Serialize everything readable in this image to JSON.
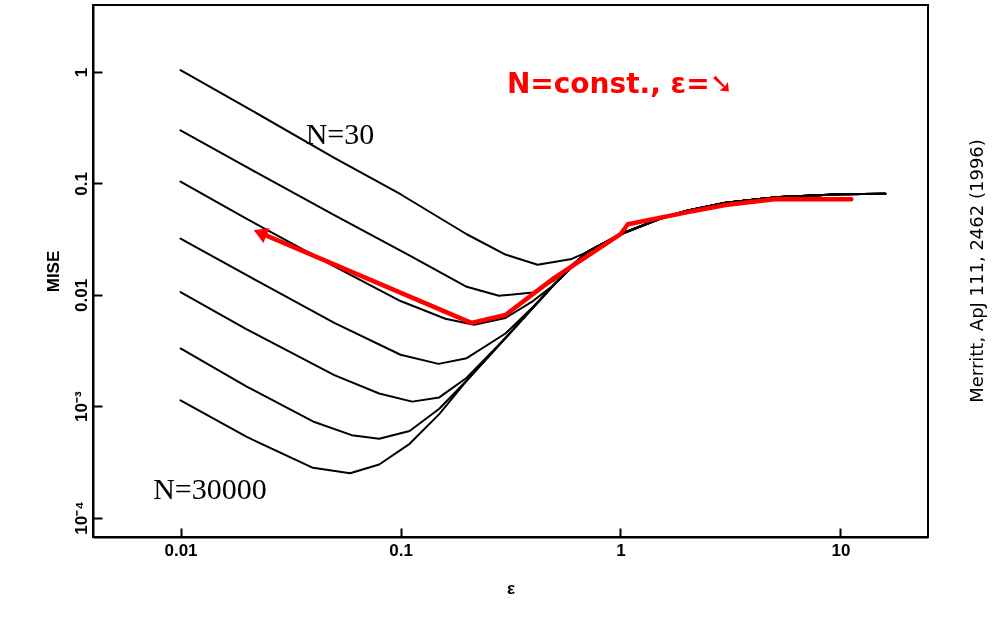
{
  "chart_data": {
    "type": "line",
    "xlabel": "ε",
    "ylabel": "MISE",
    "log": "xy",
    "xlim": [
      0.004,
      25
    ],
    "ylim": [
      6.7e-05,
      4
    ],
    "xticks": [
      0.01,
      0.1,
      1,
      10
    ],
    "yticks": [
      {
        "value": 0.0001,
        "label": "10⁻⁴"
      },
      {
        "value": 0.001,
        "label": "10⁻³"
      },
      0.01,
      0.1,
      1
    ],
    "series": [
      {
        "color": "#000000",
        "x": [
          0.01,
          0.02,
          0.05,
          0.1,
          0.2,
          0.3,
          0.42,
          0.6,
          0.8,
          1,
          1.5,
          2,
          3,
          5,
          10,
          16
        ],
        "values": [
          1.04,
          0.48,
          0.17,
          0.08,
          0.035,
          0.023,
          0.0186,
          0.021,
          0.027,
          0.035,
          0.048,
          0.057,
          0.067,
          0.075,
          0.08,
          0.081
        ]
      },
      {
        "color": "#000000",
        "x": [
          0.01,
          0.02,
          0.05,
          0.1,
          0.2,
          0.28,
          0.4,
          0.5,
          0.7,
          1,
          1.5,
          2,
          3,
          5,
          10,
          16
        ],
        "values": [
          0.3,
          0.14,
          0.052,
          0.025,
          0.0118,
          0.0098,
          0.0105,
          0.0135,
          0.024,
          0.035,
          0.048,
          0.057,
          0.067,
          0.075,
          0.08,
          0.081
        ]
      },
      {
        "color": "#000000",
        "x": [
          0.01,
          0.02,
          0.05,
          0.1,
          0.16,
          0.216,
          0.3,
          0.4,
          0.5,
          0.7,
          1,
          1.5,
          2,
          3,
          5,
          10,
          16
        ],
        "values": [
          0.104,
          0.048,
          0.018,
          0.0088,
          0.0061,
          0.0054,
          0.0062,
          0.0088,
          0.0124,
          0.024,
          0.035,
          0.048,
          0.057,
          0.067,
          0.075,
          0.08,
          0.081
        ]
      },
      {
        "color": "#000000",
        "x": [
          0.01,
          0.02,
          0.05,
          0.1,
          0.149,
          0.2,
          0.3,
          0.4,
          0.5,
          0.7,
          1,
          1.5,
          2,
          3,
          5,
          10,
          16
        ],
        "values": [
          0.032,
          0.015,
          0.0056,
          0.0029,
          0.0024,
          0.0027,
          0.0045,
          0.0078,
          0.0124,
          0.024,
          0.035,
          0.048,
          0.057,
          0.067,
          0.075,
          0.08,
          0.081
        ]
      },
      {
        "color": "#000000",
        "x": [
          0.01,
          0.02,
          0.05,
          0.08,
          0.113,
          0.15,
          0.2,
          0.3,
          0.5,
          0.7,
          1,
          1.5,
          2,
          3,
          5,
          10,
          16
        ],
        "values": [
          0.0106,
          0.0049,
          0.0019,
          0.0013,
          0.0011,
          0.0012,
          0.0018,
          0.0041,
          0.0124,
          0.024,
          0.035,
          0.048,
          0.057,
          0.067,
          0.075,
          0.08,
          0.081
        ]
      },
      {
        "color": "#000000",
        "x": [
          0.01,
          0.02,
          0.04,
          0.06,
          0.08,
          0.11,
          0.15,
          0.2,
          0.3,
          0.5,
          0.7,
          1,
          1.5,
          2,
          3,
          5,
          10,
          16
        ],
        "values": [
          0.0033,
          0.0015,
          0.00073,
          0.00055,
          0.00051,
          0.0006,
          0.00095,
          0.0017,
          0.0041,
          0.0124,
          0.024,
          0.035,
          0.048,
          0.057,
          0.067,
          0.075,
          0.08,
          0.081
        ]
      },
      {
        "color": "#000000",
        "x": [
          0.01,
          0.02,
          0.04,
          0.059,
          0.08,
          0.11,
          0.15,
          0.2,
          0.3,
          0.5,
          0.7,
          1,
          1.5,
          2,
          3,
          5,
          10,
          16
        ],
        "values": [
          0.00113,
          0.00053,
          0.00028,
          0.00025,
          0.0003,
          0.00046,
          0.00085,
          0.0017,
          0.0041,
          0.0124,
          0.024,
          0.035,
          0.048,
          0.057,
          0.067,
          0.075,
          0.08,
          0.081
        ]
      },
      {
        "color": "#ff0000",
        "x": [
          0.023,
          0.21,
          0.3,
          0.5,
          1,
          1.08,
          2,
          3,
          5,
          11.2
        ],
        "values": [
          0.036,
          0.0056,
          0.0066,
          0.0142,
          0.035,
          0.043,
          0.055,
          0.064,
          0.072,
          0.072
        ]
      }
    ],
    "annotations": [
      "N=const., ε=➘",
      "N=30",
      "N=30000",
      "Merritt, ApJ 111, 2462 (1996)"
    ]
  }
}
